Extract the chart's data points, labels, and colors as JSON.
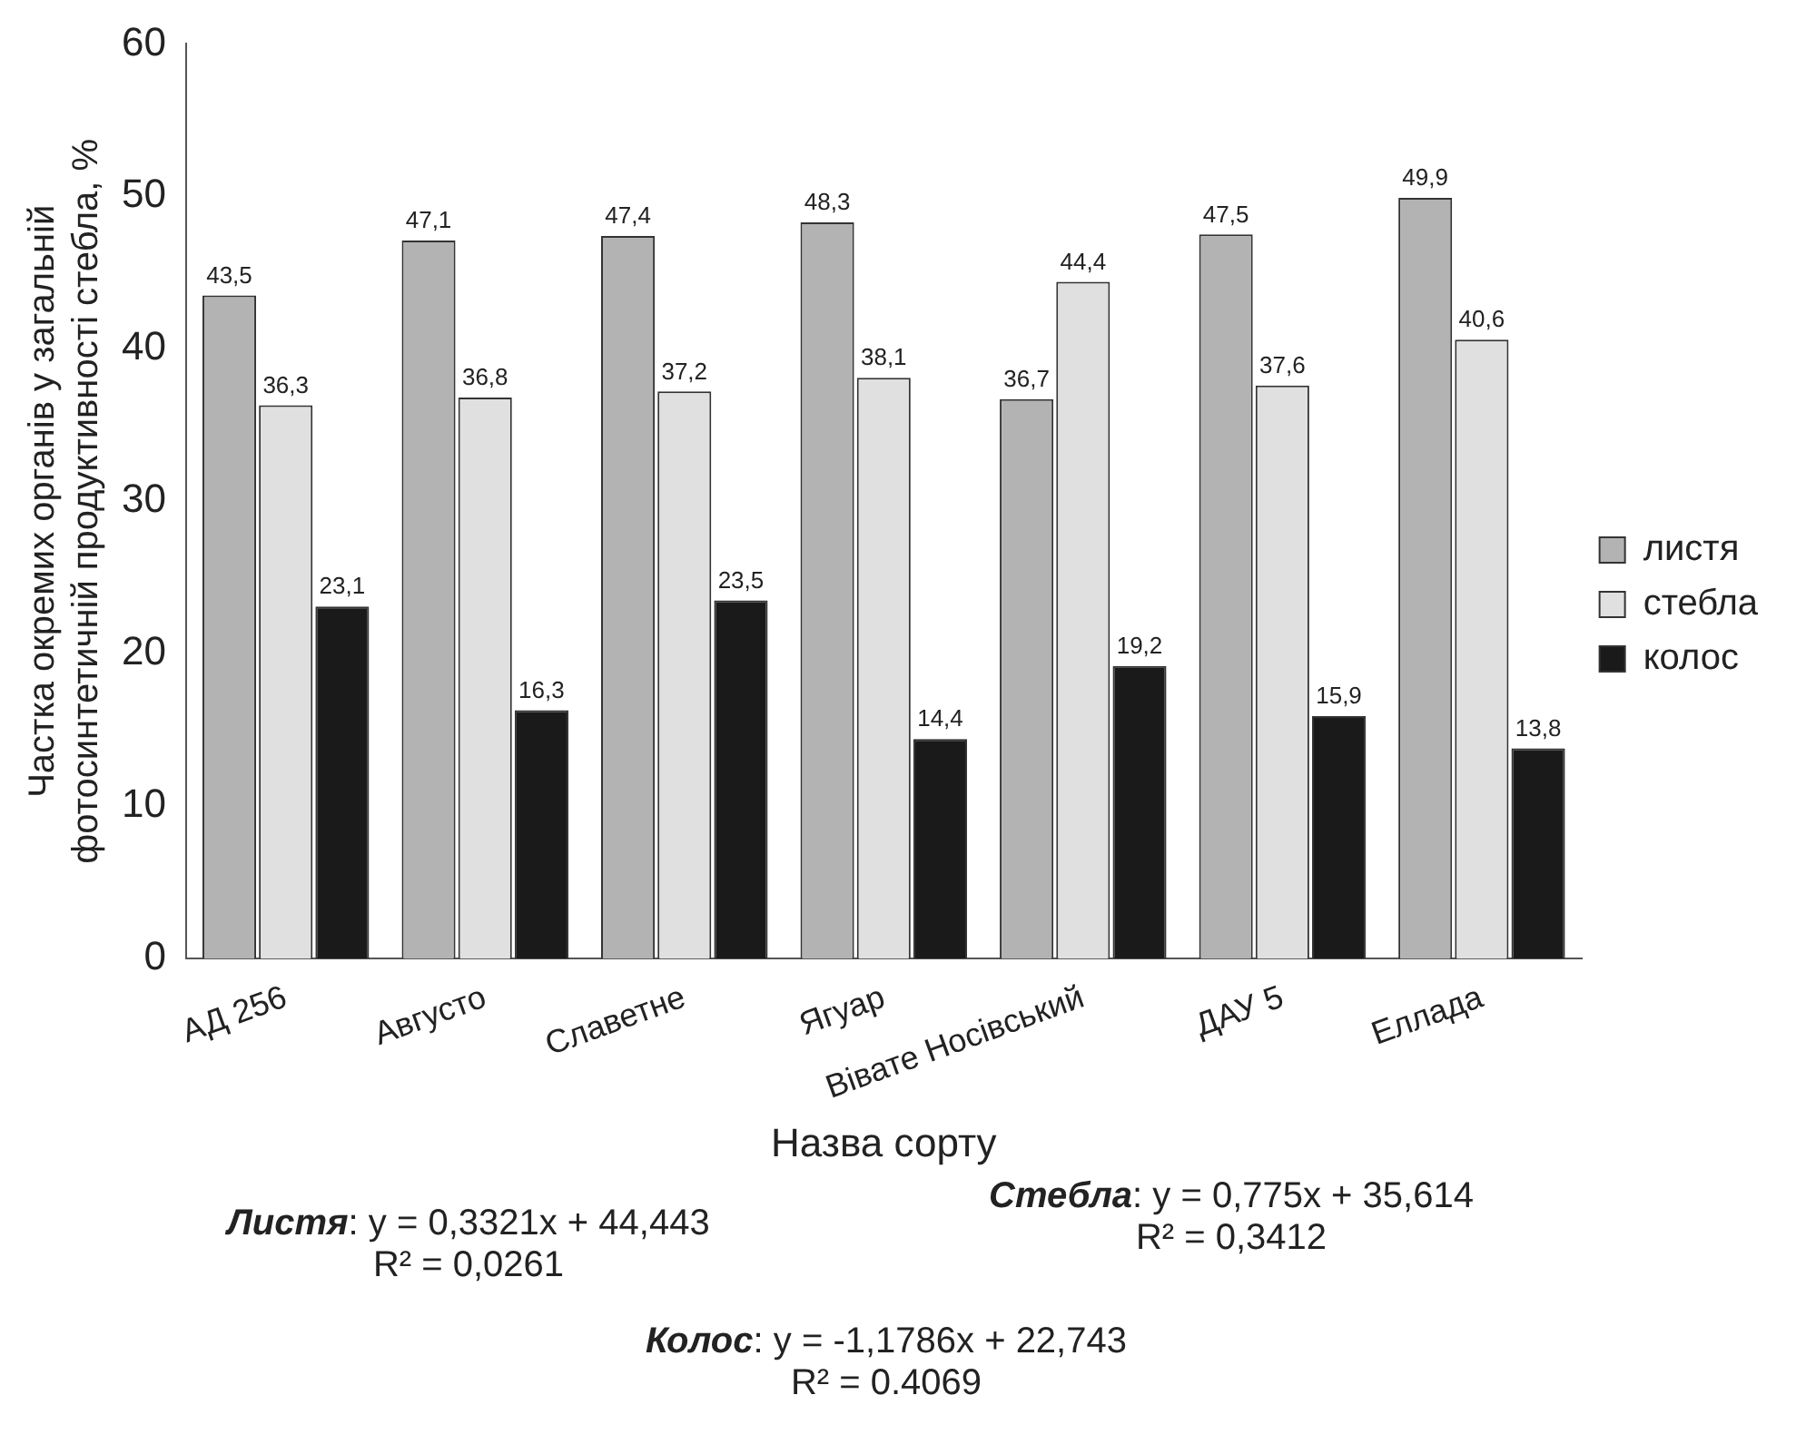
{
  "chart_data": {
    "type": "bar",
    "xlabel": "Назва сорту",
    "ylabel": "Частка окремих органів у загальній фотосинтетичній продуктивності стебла, %",
    "categories": [
      "АД 256",
      "Августо",
      "Славетне",
      "Ягуар",
      "Вівате Носівський",
      "ДАУ 5",
      "Еллада"
    ],
    "series": [
      {
        "name": "листя",
        "color": "#b3b3b3",
        "values": [
          43.5,
          47.1,
          47.4,
          48.3,
          36.7,
          47.5,
          49.9
        ],
        "value_labels": [
          "43,5",
          "47,1",
          "47,4",
          "48,3",
          "36,7",
          "47,5",
          "49,9"
        ]
      },
      {
        "name": "стебла",
        "color": "#e0e0e0",
        "values": [
          36.3,
          36.8,
          37.2,
          38.1,
          44.4,
          37.6,
          40.6
        ],
        "value_labels": [
          "36,3",
          "36,8",
          "37,2",
          "38,1",
          "44,4",
          "37,6",
          "40,6"
        ]
      },
      {
        "name": "колос",
        "color": "#1a1a1a",
        "values": [
          23.1,
          16.3,
          23.5,
          14.4,
          19.2,
          15.9,
          13.8
        ],
        "value_labels": [
          "23,1",
          "16,3",
          "23,5",
          "14,4",
          "19,2",
          "15,9",
          "13,8"
        ]
      }
    ],
    "ylim": [
      0,
      60
    ],
    "yticks": [
      0,
      10,
      20,
      30,
      40,
      50,
      60
    ],
    "grid": false,
    "legend": "right",
    "annotations": [
      "Листя: y = 0,3321x + 44,443",
      "R² = 0,0261",
      "Стебла: y = 0,775x + 35,614",
      "R² = 0,3412",
      "Колос: y = -1,1786x + 22,743",
      "R² = 0.4069"
    ]
  }
}
